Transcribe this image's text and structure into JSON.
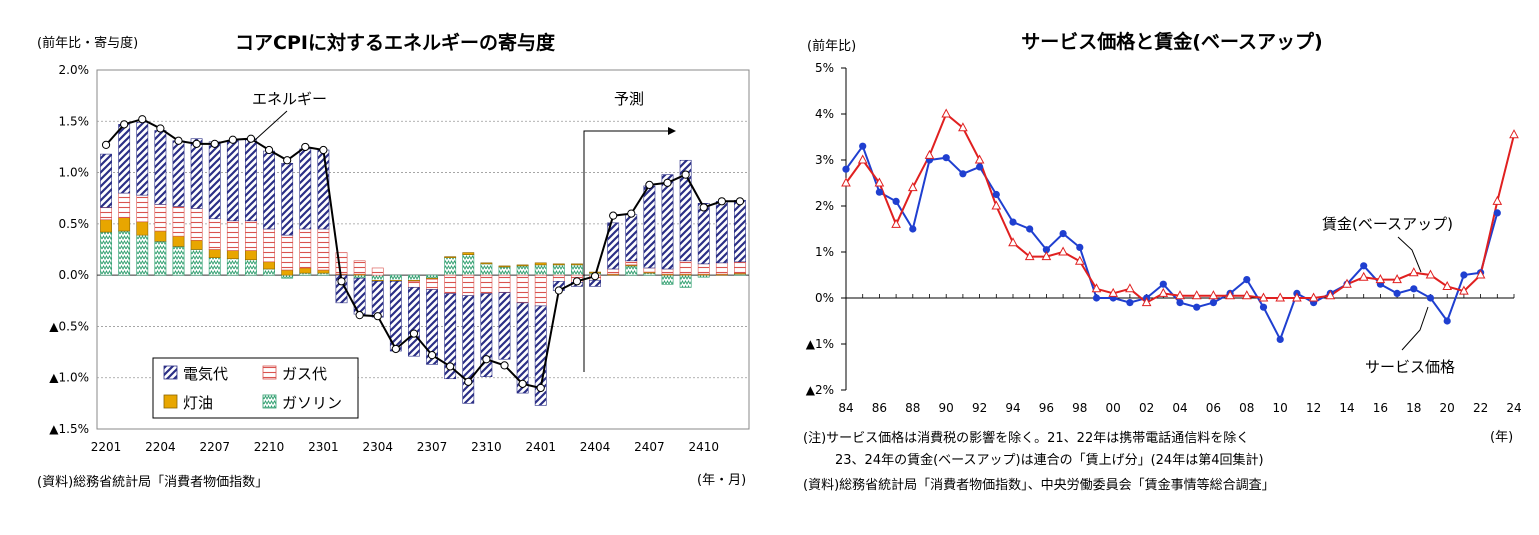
{
  "chart_data": [
    {
      "type": "bar",
      "stacked": true,
      "title": "コアCPIに対するエネルギーの寄与度",
      "unit_label": "(前年比・寄与度)",
      "xlabel": "(年・月)",
      "source": "(資料)総務省統計局「消費者物価指数」",
      "ylim": [
        -1.5,
        2.0
      ],
      "y_ticks": [
        2.0,
        1.5,
        1.0,
        0.5,
        0.0,
        -0.5,
        -1.0,
        -1.5
      ],
      "y_tick_labels": [
        "2.0%",
        "1.5%",
        "1.0%",
        "0.5%",
        "0.0%",
        "▲0.5%",
        "▲1.0%",
        "▲1.5%"
      ],
      "x_tick_labels": [
        "2201",
        "2204",
        "2207",
        "2210",
        "2301",
        "2304",
        "2307",
        "2310",
        "2401",
        "2404",
        "2407",
        "2410"
      ],
      "annotations": {
        "energy": "エネルギー",
        "forecast": "予測"
      },
      "forecast_start_index": 27,
      "legend": [
        "電気代",
        "ガス代",
        "灯油",
        "ガソリン"
      ],
      "categories": [
        "2201",
        "2202",
        "2203",
        "2204",
        "2205",
        "2206",
        "2207",
        "2208",
        "2209",
        "2210",
        "2211",
        "2212",
        "2301",
        "2302",
        "2303",
        "2304",
        "2305",
        "2306",
        "2307",
        "2308",
        "2309",
        "2310",
        "2311",
        "2312",
        "2401",
        "2402",
        "2403",
        "2404",
        "2405",
        "2406",
        "2407",
        "2408",
        "2409",
        "2410",
        "2411",
        "2412"
      ],
      "series": [
        {
          "name": "電気代",
          "values": [
            0.52,
            0.67,
            0.71,
            0.72,
            0.64,
            0.68,
            0.75,
            0.78,
            0.8,
            0.76,
            0.7,
            0.78,
            0.77,
            -0.27,
            -0.35,
            -0.35,
            -0.68,
            -0.67,
            -0.73,
            -0.83,
            -1.05,
            -0.81,
            -0.65,
            -0.88,
            -0.97,
            -0.09,
            -0.04,
            -0.06,
            0.45,
            0.45,
            0.8,
            0.92,
            0.98,
            0.59,
            0.6,
            0.6
          ]
        },
        {
          "name": "ガス代",
          "values": [
            0.12,
            0.24,
            0.26,
            0.26,
            0.29,
            0.31,
            0.3,
            0.29,
            0.29,
            0.32,
            0.34,
            0.38,
            0.4,
            0.21,
            0.13,
            0.07,
            0.0,
            -0.06,
            -0.1,
            -0.18,
            -0.2,
            -0.18,
            -0.17,
            -0.27,
            -0.3,
            -0.06,
            -0.07,
            -0.05,
            0.05,
            0.04,
            0.04,
            0.05,
            0.13,
            0.1,
            0.11,
            0.11
          ]
        },
        {
          "name": "灯油",
          "values": [
            0.12,
            0.13,
            0.13,
            0.1,
            0.1,
            0.09,
            0.08,
            0.08,
            0.09,
            0.07,
            0.05,
            0.05,
            0.03,
            0.01,
            0.01,
            -0.01,
            -0.01,
            -0.01,
            -0.01,
            0.01,
            0.02,
            0.01,
            0.01,
            0.01,
            0.02,
            0.01,
            0.01,
            0.01,
            0.01,
            0.01,
            0.01,
            0.01,
            0.01,
            0.01,
            0.01,
            0.01
          ]
        },
        {
          "name": "ガソリン",
          "values": [
            0.42,
            0.43,
            0.39,
            0.33,
            0.28,
            0.25,
            0.17,
            0.16,
            0.15,
            0.06,
            -0.03,
            0.02,
            0.02,
            0.0,
            -0.03,
            -0.05,
            -0.05,
            -0.05,
            -0.03,
            0.17,
            0.2,
            0.11,
            0.08,
            0.09,
            0.1,
            0.1,
            0.1,
            0.02,
            0.0,
            0.09,
            0.02,
            -0.09,
            -0.12,
            -0.02,
            0.0,
            0.01
          ]
        }
      ],
      "energy_total": [
        1.27,
        1.47,
        1.52,
        1.43,
        1.31,
        1.28,
        1.28,
        1.32,
        1.33,
        1.22,
        1.12,
        1.25,
        1.22,
        -0.06,
        -0.39,
        -0.4,
        -0.72,
        -0.57,
        -0.78,
        -0.89,
        -1.04,
        -0.82,
        -0.88,
        -1.06,
        -1.1,
        -0.15,
        -0.06,
        -0.01,
        0.58,
        0.6,
        0.88,
        0.9,
        0.98,
        0.66,
        0.72,
        0.72
      ]
    },
    {
      "type": "line",
      "title": "サービス価格と賃金(ベースアップ)",
      "unit_label": "(前年比)",
      "xlabel": "(年)",
      "ylim": [
        -2,
        5
      ],
      "y_ticks": [
        5,
        4,
        3,
        2,
        1,
        0,
        -1,
        -2
      ],
      "y_tick_labels": [
        "5%",
        "4%",
        "3%",
        "2%",
        "1%",
        "0%",
        "▲1%",
        "▲2%"
      ],
      "x_tick_labels": [
        "84",
        "86",
        "88",
        "90",
        "92",
        "94",
        "96",
        "98",
        "00",
        "02",
        "04",
        "06",
        "08",
        "10",
        "12",
        "14",
        "16",
        "18",
        "20",
        "22",
        "24"
      ],
      "x": [
        1984,
        1985,
        1986,
        1987,
        1988,
        1989,
        1990,
        1991,
        1992,
        1993,
        1994,
        1995,
        1996,
        1997,
        1998,
        1999,
        2000,
        2001,
        2002,
        2003,
        2004,
        2005,
        2006,
        2007,
        2008,
        2009,
        2010,
        2011,
        2012,
        2013,
        2014,
        2015,
        2016,
        2017,
        2018,
        2019,
        2020,
        2021,
        2022,
        2023,
        2024
      ],
      "series": [
        {
          "name": "サービス価格",
          "color": "#1f3fd0",
          "marker": "circle",
          "values": [
            2.8,
            3.3,
            2.3,
            2.1,
            1.5,
            3.0,
            3.05,
            2.7,
            2.85,
            2.25,
            1.65,
            1.5,
            1.05,
            1.4,
            1.1,
            0.0,
            0.0,
            -0.1,
            0.0,
            0.3,
            -0.1,
            -0.2,
            -0.1,
            0.1,
            0.4,
            -0.2,
            -0.9,
            0.1,
            -0.1,
            0.1,
            0.3,
            0.7,
            0.3,
            0.1,
            0.2,
            0.0,
            -0.5,
            0.5,
            0.55,
            1.85,
            null
          ]
        },
        {
          "name": "賃金(ベースアップ)",
          "color": "#e02020",
          "marker": "triangle",
          "values": [
            2.5,
            3.0,
            2.5,
            1.6,
            2.4,
            3.1,
            4.0,
            3.7,
            3.0,
            2.0,
            1.2,
            0.9,
            0.9,
            1.0,
            0.8,
            0.2,
            0.1,
            0.2,
            -0.1,
            0.1,
            0.05,
            0.05,
            0.05,
            0.05,
            0.05,
            0.0,
            0.0,
            0.0,
            0.0,
            0.05,
            0.3,
            0.45,
            0.4,
            0.4,
            0.55,
            0.5,
            0.25,
            0.15,
            0.5,
            2.1,
            3.55
          ]
        }
      ],
      "annotations": {
        "wage": "賃金(ベースアップ)",
        "service": "サービス価格"
      },
      "notes": [
        "(注)サービス価格は消費税の影響を除く。21、22年は携帯電話通信料を除く",
        "23、24年の賃金(ベースアップ)は連合の「賃上げ分」(24年は第4回集計)",
        "(資料)総務省統計局「消費者物価指数」、中央労働委員会「賃金事情等総合調査」"
      ]
    }
  ]
}
